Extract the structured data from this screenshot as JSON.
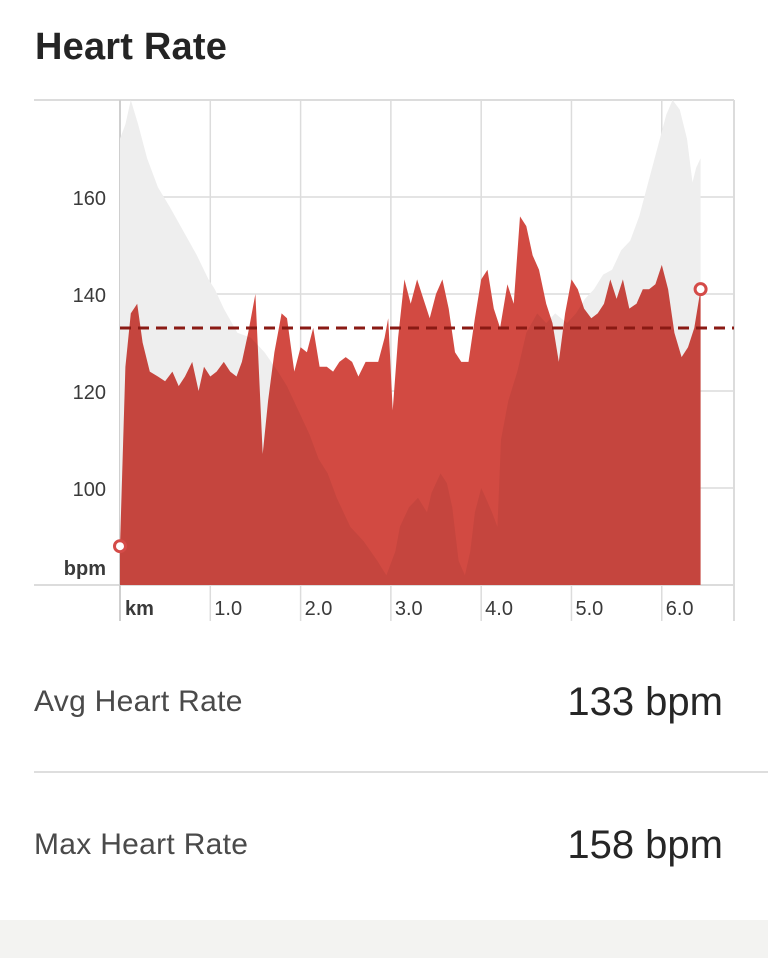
{
  "header": {
    "title": "Heart Rate"
  },
  "stats": {
    "avg": {
      "label": "Avg Heart Rate",
      "value": "133 bpm"
    },
    "max": {
      "label": "Max Heart Rate",
      "value": "158 bpm"
    }
  },
  "colors": {
    "heart_rate_fill": "#d24a42",
    "elevation_fill": "#eeeeee",
    "average_line": "#8a1a14",
    "grid": "#dcdcdc",
    "marker": "#d44b48"
  },
  "chart_data": {
    "type": "area",
    "ylabel": "bpm",
    "xlabel": "km",
    "ylim": [
      80,
      180
    ],
    "xlim": [
      0,
      6.8
    ],
    "y_ticks": [
      100,
      120,
      140,
      160
    ],
    "x_ticks": [
      1.0,
      2.0,
      3.0,
      4.0,
      5.0,
      6.0
    ],
    "x_tick_labels": [
      "1.0",
      "2.0",
      "3.0",
      "4.0",
      "5.0",
      "6.0"
    ],
    "grid": true,
    "average": 133,
    "series": [
      {
        "values": [
          [
            0.0,
            88
          ],
          [
            0.06,
            125
          ],
          [
            0.12,
            136
          ],
          [
            0.19,
            138
          ],
          [
            0.25,
            130
          ],
          [
            0.33,
            124
          ],
          [
            0.42,
            123
          ],
          [
            0.5,
            122
          ],
          [
            0.58,
            124
          ],
          [
            0.65,
            121
          ],
          [
            0.72,
            123
          ],
          [
            0.8,
            126
          ],
          [
            0.87,
            120
          ],
          [
            0.93,
            125
          ],
          [
            1.0,
            123
          ],
          [
            1.07,
            124
          ],
          [
            1.15,
            126
          ],
          [
            1.22,
            124
          ],
          [
            1.29,
            123
          ],
          [
            1.35,
            126
          ],
          [
            1.42,
            132
          ],
          [
            1.5,
            140
          ],
          [
            1.58,
            107
          ],
          [
            1.64,
            118
          ],
          [
            1.71,
            128
          ],
          [
            1.79,
            136
          ],
          [
            1.85,
            135
          ],
          [
            1.93,
            124
          ],
          [
            2.0,
            129
          ],
          [
            2.07,
            128
          ],
          [
            2.14,
            133
          ],
          [
            2.21,
            125
          ],
          [
            2.29,
            125
          ],
          [
            2.36,
            124
          ],
          [
            2.43,
            126
          ],
          [
            2.5,
            127
          ],
          [
            2.57,
            126
          ],
          [
            2.64,
            123
          ],
          [
            2.72,
            126
          ],
          [
            2.79,
            126
          ],
          [
            2.86,
            126
          ],
          [
            2.93,
            131
          ],
          [
            2.97,
            135
          ],
          [
            3.02,
            116
          ],
          [
            3.08,
            131
          ],
          [
            3.15,
            143
          ],
          [
            3.22,
            138
          ],
          [
            3.29,
            143
          ],
          [
            3.36,
            139
          ],
          [
            3.43,
            135
          ],
          [
            3.5,
            140
          ],
          [
            3.57,
            143
          ],
          [
            3.64,
            137
          ],
          [
            3.71,
            128
          ],
          [
            3.78,
            126
          ],
          [
            3.86,
            126
          ],
          [
            3.93,
            135
          ],
          [
            4.0,
            143
          ],
          [
            4.07,
            145
          ],
          [
            4.14,
            137
          ],
          [
            4.21,
            133
          ],
          [
            4.29,
            142
          ],
          [
            4.36,
            138
          ],
          [
            4.43,
            156
          ],
          [
            4.5,
            154
          ],
          [
            4.57,
            148
          ],
          [
            4.64,
            145
          ],
          [
            4.72,
            138
          ],
          [
            4.79,
            134
          ],
          [
            4.86,
            126
          ],
          [
            4.93,
            136
          ],
          [
            5.0,
            143
          ],
          [
            5.07,
            141
          ],
          [
            5.14,
            137
          ],
          [
            5.22,
            135
          ],
          [
            5.29,
            136
          ],
          [
            5.36,
            138
          ],
          [
            5.43,
            143
          ],
          [
            5.5,
            139
          ],
          [
            5.57,
            143
          ],
          [
            5.64,
            137
          ],
          [
            5.72,
            138
          ],
          [
            5.79,
            141
          ],
          [
            5.86,
            141
          ],
          [
            5.93,
            142
          ],
          [
            6.0,
            146
          ],
          [
            6.07,
            141
          ],
          [
            6.14,
            132
          ],
          [
            6.22,
            127
          ],
          [
            6.29,
            129
          ],
          [
            6.36,
            133
          ],
          [
            6.43,
            141
          ]
        ]
      },
      {
        "values": [
          [
            0.0,
            172
          ],
          [
            0.06,
            175
          ],
          [
            0.12,
            180
          ],
          [
            0.2,
            175
          ],
          [
            0.3,
            168
          ],
          [
            0.42,
            162
          ],
          [
            0.55,
            158
          ],
          [
            0.7,
            153
          ],
          [
            0.85,
            148
          ],
          [
            0.98,
            143
          ],
          [
            1.05,
            141
          ],
          [
            1.15,
            137
          ],
          [
            1.3,
            132
          ],
          [
            1.45,
            131
          ],
          [
            1.6,
            128
          ],
          [
            1.75,
            124
          ],
          [
            1.85,
            121
          ],
          [
            1.95,
            117
          ],
          [
            2.1,
            111
          ],
          [
            2.2,
            106
          ],
          [
            2.3,
            103
          ],
          [
            2.4,
            98
          ],
          [
            2.55,
            92
          ],
          [
            2.7,
            89
          ],
          [
            2.85,
            85
          ],
          [
            2.95,
            82
          ],
          [
            3.05,
            87
          ],
          [
            3.1,
            92
          ],
          [
            3.2,
            96
          ],
          [
            3.3,
            98
          ],
          [
            3.4,
            95
          ],
          [
            3.45,
            99
          ],
          [
            3.55,
            103
          ],
          [
            3.62,
            101
          ],
          [
            3.68,
            96
          ],
          [
            3.75,
            85
          ],
          [
            3.82,
            82
          ],
          [
            3.88,
            87
          ],
          [
            3.93,
            95
          ],
          [
            4.0,
            100
          ],
          [
            4.05,
            98
          ],
          [
            4.12,
            95
          ],
          [
            4.18,
            92
          ],
          [
            4.22,
            110
          ],
          [
            4.3,
            118
          ],
          [
            4.4,
            124
          ],
          [
            4.5,
            132
          ],
          [
            4.62,
            136
          ],
          [
            4.72,
            134
          ],
          [
            4.82,
            136
          ],
          [
            4.95,
            134
          ],
          [
            5.05,
            136
          ],
          [
            5.15,
            139
          ],
          [
            5.25,
            141
          ],
          [
            5.35,
            144
          ],
          [
            5.45,
            145
          ],
          [
            5.55,
            149
          ],
          [
            5.65,
            151
          ],
          [
            5.75,
            156
          ],
          [
            5.85,
            163
          ],
          [
            5.95,
            170
          ],
          [
            6.05,
            177
          ],
          [
            6.12,
            181
          ],
          [
            6.2,
            178
          ],
          [
            6.28,
            172
          ],
          [
            6.34,
            163
          ],
          [
            6.38,
            166
          ],
          [
            6.43,
            168
          ]
        ]
      }
    ]
  }
}
